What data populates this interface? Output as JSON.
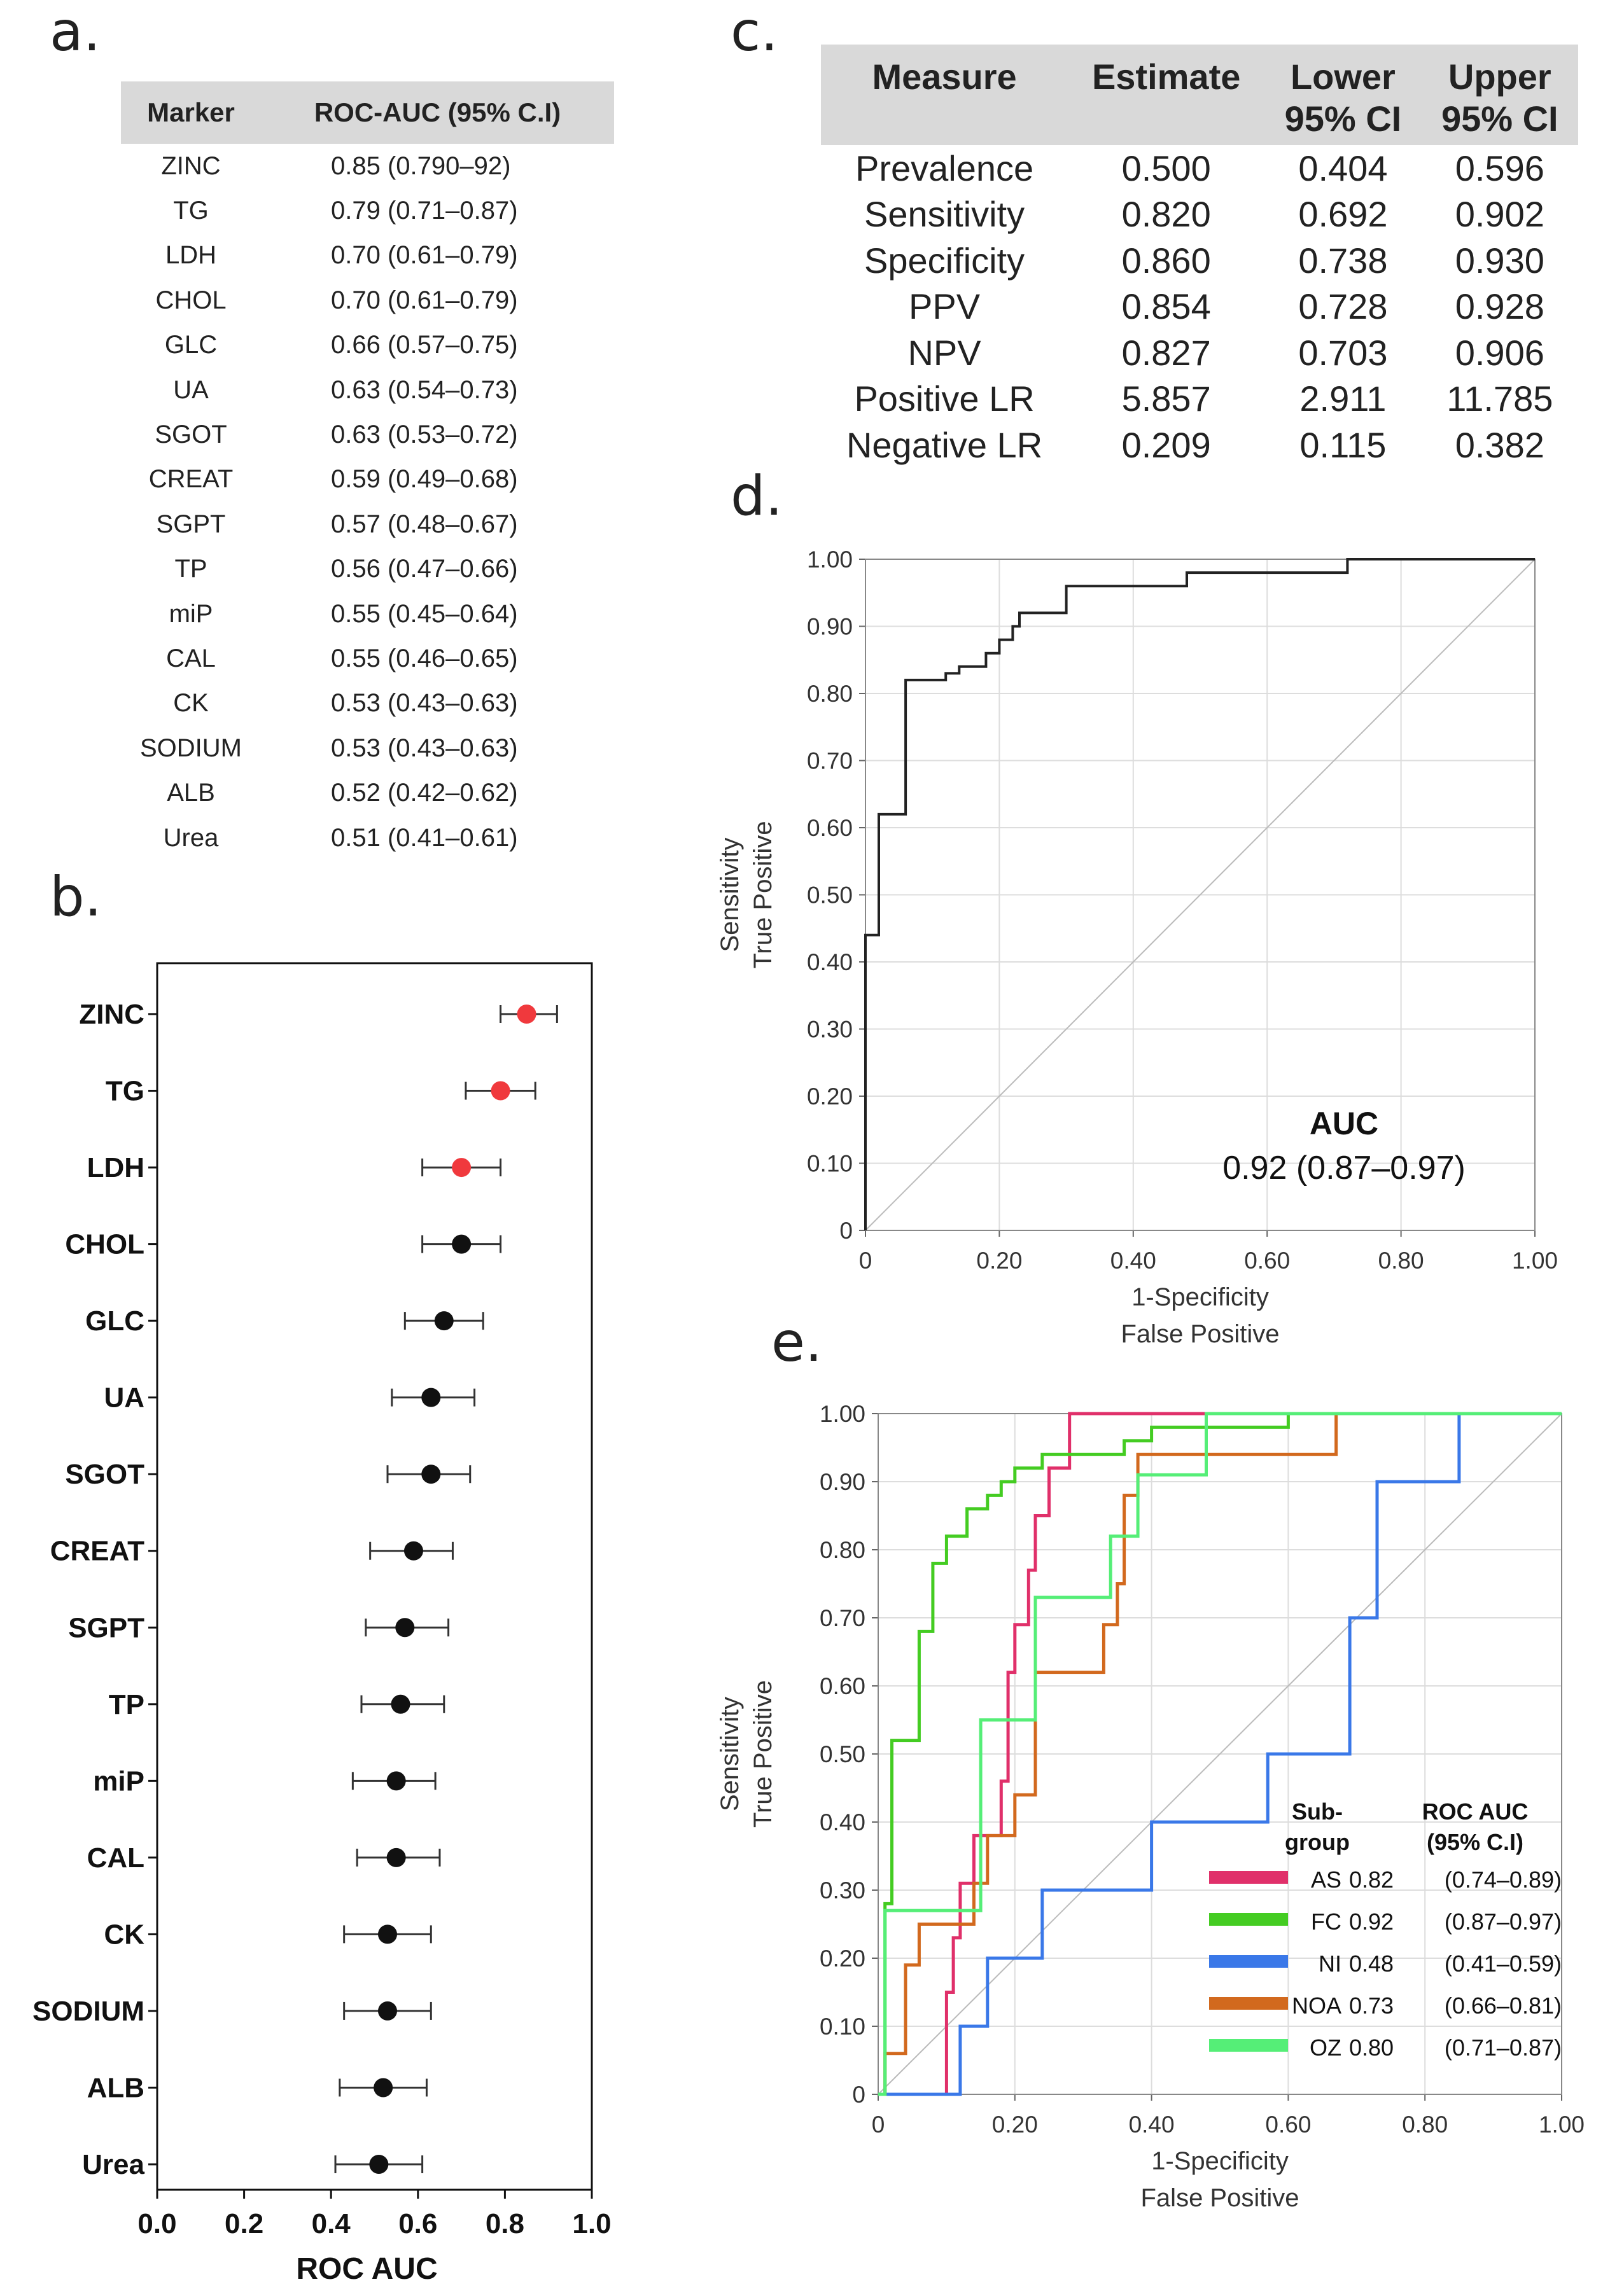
{
  "panels": {
    "a": "a.",
    "b": "b.",
    "c": "c.",
    "d": "d.",
    "e": "e."
  },
  "table_a": {
    "headers": [
      "Marker",
      "ROC-AUC (95% C.I)"
    ],
    "rows": [
      [
        "ZINC",
        "0.85 (0.790–92)"
      ],
      [
        "TG",
        "0.79 (0.71–0.87)"
      ],
      [
        "LDH",
        "0.70 (0.61–0.79)"
      ],
      [
        "CHOL",
        "0.70 (0.61–0.79)"
      ],
      [
        "GLC",
        "0.66 (0.57–0.75)"
      ],
      [
        "UA",
        "0.63 (0.54–0.73)"
      ],
      [
        "SGOT",
        "0.63 (0.53–0.72)"
      ],
      [
        "CREAT",
        "0.59 (0.49–0.68)"
      ],
      [
        "SGPT",
        "0.57 (0.48–0.67)"
      ],
      [
        "TP",
        "0.56 (0.47–0.66)"
      ],
      [
        "miP",
        "0.55 (0.45–0.64)"
      ],
      [
        "CAL",
        "0.55 (0.46–0.65)"
      ],
      [
        "CK",
        "0.53 (0.43–0.63)"
      ],
      [
        "SODIUM",
        "0.53 (0.43–0.63)"
      ],
      [
        "ALB",
        "0.52 (0.42–0.62)"
      ],
      [
        "Urea",
        "0.51 (0.41–0.61)"
      ]
    ]
  },
  "table_c": {
    "headers": [
      "Measure",
      "Estimate",
      "Lower 95% CI",
      "Upper 95% CI"
    ],
    "header_lines": [
      [
        "Measure"
      ],
      [
        "Estimate"
      ],
      [
        "Lower",
        "95% CI"
      ],
      [
        "Upper",
        "95% CI"
      ]
    ],
    "rows": [
      [
        "Prevalence",
        "0.500",
        "0.404",
        "0.596"
      ],
      [
        "Sensitivity",
        "0.820",
        "0.692",
        "0.902"
      ],
      [
        "Specificity",
        "0.860",
        "0.738",
        "0.930"
      ],
      [
        "PPV",
        "0.854",
        "0.728",
        "0.928"
      ],
      [
        "NPV",
        "0.827",
        "0.703",
        "0.906"
      ],
      [
        "Positive LR",
        "5.857",
        "2.911",
        "11.785"
      ],
      [
        "Negative LR",
        "0.209",
        "0.115",
        "0.382"
      ]
    ]
  },
  "chart_data": [
    {
      "id": "b",
      "type": "scatter",
      "subtype": "forest-plot",
      "xlabel": "ROC AUC",
      "xlim": [
        0.0,
        1.0
      ],
      "xticks": [
        "0.0",
        "0.2",
        "0.4",
        "0.6",
        "0.8",
        "1.0"
      ],
      "highlight_color": "#f0393d",
      "default_color": "#111111",
      "markers": [
        {
          "label": "ZINC",
          "auc": 0.85,
          "lo": 0.79,
          "hi": 0.92,
          "highlight": true
        },
        {
          "label": "TG",
          "auc": 0.79,
          "lo": 0.71,
          "hi": 0.87,
          "highlight": true
        },
        {
          "label": "LDH",
          "auc": 0.7,
          "lo": 0.61,
          "hi": 0.79,
          "highlight": true
        },
        {
          "label": "CHOL",
          "auc": 0.7,
          "lo": 0.61,
          "hi": 0.79,
          "highlight": false
        },
        {
          "label": "GLC",
          "auc": 0.66,
          "lo": 0.57,
          "hi": 0.75,
          "highlight": false
        },
        {
          "label": "UA",
          "auc": 0.63,
          "lo": 0.54,
          "hi": 0.73,
          "highlight": false
        },
        {
          "label": "SGOT",
          "auc": 0.63,
          "lo": 0.53,
          "hi": 0.72,
          "highlight": false
        },
        {
          "label": "CREAT",
          "auc": 0.59,
          "lo": 0.49,
          "hi": 0.68,
          "highlight": false
        },
        {
          "label": "SGPT",
          "auc": 0.57,
          "lo": 0.48,
          "hi": 0.67,
          "highlight": false
        },
        {
          "label": "TP",
          "auc": 0.56,
          "lo": 0.47,
          "hi": 0.66,
          "highlight": false
        },
        {
          "label": "miP",
          "auc": 0.55,
          "lo": 0.45,
          "hi": 0.64,
          "highlight": false
        },
        {
          "label": "CAL",
          "auc": 0.55,
          "lo": 0.46,
          "hi": 0.65,
          "highlight": false
        },
        {
          "label": "CK",
          "auc": 0.53,
          "lo": 0.43,
          "hi": 0.63,
          "highlight": false
        },
        {
          "label": "SODIUM",
          "auc": 0.53,
          "lo": 0.43,
          "hi": 0.63,
          "highlight": false
        },
        {
          "label": "ALB",
          "auc": 0.52,
          "lo": 0.42,
          "hi": 0.62,
          "highlight": false
        },
        {
          "label": "Urea",
          "auc": 0.51,
          "lo": 0.41,
          "hi": 0.61,
          "highlight": false
        }
      ]
    },
    {
      "id": "d",
      "type": "line",
      "subtype": "roc-curve",
      "xlabel": "1-Specificity",
      "xlabel2": "False Positive",
      "ylabel": "Sensitivity",
      "ylabel2": "True Positive",
      "xlim": [
        0,
        1
      ],
      "ylim": [
        0,
        1
      ],
      "xticks": [
        "0",
        "0.20",
        "0.40",
        "0.60",
        "0.80",
        "1.00"
      ],
      "yticks": [
        "0",
        "0.10",
        "0.20",
        "0.30",
        "0.40",
        "0.50",
        "0.60",
        "0.70",
        "0.80",
        "0.90",
        "1.00"
      ],
      "auc_title": "AUC",
      "auc_value": "0.92 (0.87–0.97)",
      "line_color": "#222222",
      "points": [
        [
          0,
          0
        ],
        [
          0,
          0.44
        ],
        [
          0.02,
          0.44
        ],
        [
          0.02,
          0.62
        ],
        [
          0.06,
          0.62
        ],
        [
          0.06,
          0.82
        ],
        [
          0.12,
          0.82
        ],
        [
          0.12,
          0.83
        ],
        [
          0.14,
          0.83
        ],
        [
          0.14,
          0.84
        ],
        [
          0.18,
          0.84
        ],
        [
          0.18,
          0.86
        ],
        [
          0.2,
          0.86
        ],
        [
          0.2,
          0.88
        ],
        [
          0.22,
          0.88
        ],
        [
          0.22,
          0.9
        ],
        [
          0.23,
          0.9
        ],
        [
          0.23,
          0.92
        ],
        [
          0.25,
          0.92
        ],
        [
          0.25,
          0.92
        ],
        [
          0.3,
          0.92
        ],
        [
          0.3,
          0.96
        ],
        [
          0.48,
          0.96
        ],
        [
          0.48,
          0.98
        ],
        [
          0.72,
          0.98
        ],
        [
          0.72,
          1.0
        ],
        [
          1.0,
          1.0
        ]
      ]
    },
    {
      "id": "e",
      "type": "line",
      "subtype": "roc-curves",
      "xlabel": "1-Specificity",
      "xlabel2": "False Positive",
      "ylabel": "Sensitivity",
      "ylabel2": "True Positive",
      "xlim": [
        0,
        1
      ],
      "ylim": [
        0,
        1
      ],
      "xticks": [
        "0",
        "0.20",
        "0.40",
        "0.60",
        "0.80",
        "1.00"
      ],
      "yticks": [
        "0",
        "0.10",
        "0.20",
        "0.30",
        "0.40",
        "0.50",
        "0.60",
        "0.70",
        "0.80",
        "0.90",
        "1.00"
      ],
      "legend_header_sub": [
        "Sub-",
        "group"
      ],
      "legend_header_auc": [
        "ROC AUC",
        "(95% C.I)"
      ],
      "series": [
        {
          "name": "AS",
          "auc": "0.82",
          "ci": "(0.74–0.89)",
          "color": "#e0306a",
          "points": [
            [
              0,
              0
            ],
            [
              0.1,
              0
            ],
            [
              0.1,
              0.15
            ],
            [
              0.11,
              0.15
            ],
            [
              0.11,
              0.23
            ],
            [
              0.12,
              0.23
            ],
            [
              0.12,
              0.31
            ],
            [
              0.14,
              0.31
            ],
            [
              0.14,
              0.38
            ],
            [
              0.18,
              0.38
            ],
            [
              0.18,
              0.46
            ],
            [
              0.19,
              0.46
            ],
            [
              0.19,
              0.62
            ],
            [
              0.2,
              0.62
            ],
            [
              0.2,
              0.69
            ],
            [
              0.22,
              0.69
            ],
            [
              0.22,
              0.77
            ],
            [
              0.23,
              0.77
            ],
            [
              0.23,
              0.85
            ],
            [
              0.25,
              0.85
            ],
            [
              0.25,
              0.92
            ],
            [
              0.28,
              0.92
            ],
            [
              0.28,
              1.0
            ],
            [
              0.48,
              1.0
            ]
          ]
        },
        {
          "name": "FC",
          "auc": "0.92",
          "ci": "(0.87–0.97)",
          "color": "#44cc22",
          "points": [
            [
              0,
              0
            ],
            [
              0.01,
              0
            ],
            [
              0.01,
              0.28
            ],
            [
              0.02,
              0.28
            ],
            [
              0.02,
              0.52
            ],
            [
              0.06,
              0.52
            ],
            [
              0.06,
              0.68
            ],
            [
              0.08,
              0.68
            ],
            [
              0.08,
              0.78
            ],
            [
              0.1,
              0.78
            ],
            [
              0.1,
              0.82
            ],
            [
              0.13,
              0.82
            ],
            [
              0.13,
              0.86
            ],
            [
              0.16,
              0.86
            ],
            [
              0.16,
              0.88
            ],
            [
              0.18,
              0.88
            ],
            [
              0.18,
              0.9
            ],
            [
              0.2,
              0.9
            ],
            [
              0.2,
              0.92
            ],
            [
              0.24,
              0.92
            ],
            [
              0.24,
              0.94
            ],
            [
              0.36,
              0.94
            ],
            [
              0.36,
              0.96
            ],
            [
              0.4,
              0.96
            ],
            [
              0.4,
              0.98
            ],
            [
              0.6,
              0.98
            ],
            [
              0.6,
              1.0
            ],
            [
              1.0,
              1.0
            ]
          ]
        },
        {
          "name": "NI",
          "auc": "0.48",
          "ci": "(0.41–0.59)",
          "color": "#3a78e8",
          "points": [
            [
              0,
              0
            ],
            [
              0.12,
              0
            ],
            [
              0.12,
              0.1
            ],
            [
              0.16,
              0.1
            ],
            [
              0.16,
              0.2
            ],
            [
              0.24,
              0.2
            ],
            [
              0.24,
              0.3
            ],
            [
              0.4,
              0.3
            ],
            [
              0.4,
              0.4
            ],
            [
              0.57,
              0.4
            ],
            [
              0.57,
              0.5
            ],
            [
              0.69,
              0.5
            ],
            [
              0.69,
              0.7
            ],
            [
              0.73,
              0.7
            ],
            [
              0.73,
              0.9
            ],
            [
              0.85,
              0.9
            ],
            [
              0.85,
              1.0
            ]
          ]
        },
        {
          "name": "NOA",
          "auc": "0.73",
          "ci": "(0.66–0.81)",
          "color": "#d2691e",
          "points": [
            [
              0,
              0
            ],
            [
              0.01,
              0
            ],
            [
              0.01,
              0.06
            ],
            [
              0.04,
              0.06
            ],
            [
              0.04,
              0.19
            ],
            [
              0.06,
              0.19
            ],
            [
              0.06,
              0.25
            ],
            [
              0.14,
              0.25
            ],
            [
              0.14,
              0.31
            ],
            [
              0.16,
              0.31
            ],
            [
              0.16,
              0.38
            ],
            [
              0.2,
              0.38
            ],
            [
              0.2,
              0.44
            ],
            [
              0.23,
              0.44
            ],
            [
              0.23,
              0.62
            ],
            [
              0.33,
              0.62
            ],
            [
              0.33,
              0.69
            ],
            [
              0.35,
              0.69
            ],
            [
              0.35,
              0.75
            ],
            [
              0.36,
              0.75
            ],
            [
              0.36,
              0.88
            ],
            [
              0.38,
              0.88
            ],
            [
              0.38,
              0.94
            ],
            [
              0.67,
              0.94
            ],
            [
              0.67,
              1.0
            ]
          ]
        },
        {
          "name": "OZ",
          "auc": "0.80",
          "ci": "(0.71–0.87)",
          "color": "#55ee77",
          "points": [
            [
              0,
              0
            ],
            [
              0.01,
              0
            ],
            [
              0.01,
              0.27
            ],
            [
              0.15,
              0.27
            ],
            [
              0.15,
              0.55
            ],
            [
              0.23,
              0.55
            ],
            [
              0.23,
              0.73
            ],
            [
              0.34,
              0.73
            ],
            [
              0.34,
              0.82
            ],
            [
              0.38,
              0.82
            ],
            [
              0.38,
              0.91
            ],
            [
              0.48,
              0.91
            ],
            [
              0.48,
              1.0
            ],
            [
              1.0,
              1.0
            ]
          ]
        }
      ]
    }
  ]
}
